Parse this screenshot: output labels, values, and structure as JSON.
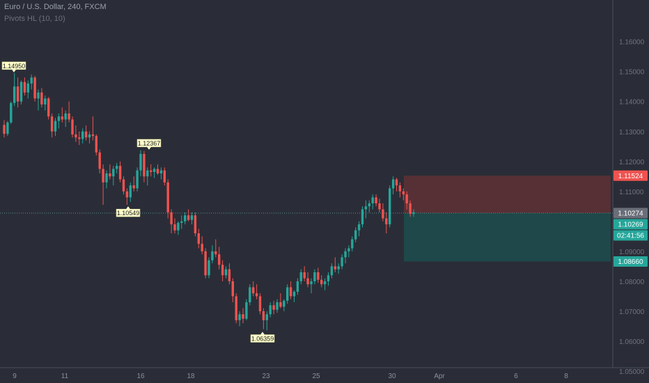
{
  "header": {
    "symbol_line": "Euro / U.S. Dollar, 240, FXCM",
    "indicator_line": "Pivots HL (10, 10)"
  },
  "colors": {
    "background": "#2a2d37",
    "up": "#26a69a",
    "down": "#ef5350",
    "axis_text": "#8a8f9b",
    "grid": "#353945"
  },
  "chart_data": {
    "type": "candlestick",
    "symbol": "Euro / U.S. Dollar",
    "interval": "240",
    "source": "FXCM",
    "ylim": [
      1.05,
      1.165
    ],
    "y_ticks": [
      "1.05000",
      "1.06000",
      "1.07000",
      "1.08000",
      "1.09000",
      "1.10000",
      "1.11000",
      "1.12000",
      "1.13000",
      "1.14000",
      "1.15000",
      "1.16000"
    ],
    "x_ticks": [
      "9",
      "11",
      "16",
      "18",
      "23",
      "25",
      "30",
      "Apr",
      "6",
      "8"
    ],
    "price_labels": [
      {
        "value": "1.11524",
        "kind": "stop"
      },
      {
        "value": "1.10274",
        "kind": "last"
      },
      {
        "value": "1.10269",
        "kind": "bid"
      },
      {
        "value": "02:41:56",
        "kind": "countdown"
      },
      {
        "value": "1.08660",
        "kind": "target"
      }
    ],
    "pivot_labels": [
      {
        "text": "1.14950",
        "type": "high",
        "value": 1.1495
      },
      {
        "text": "1.12367",
        "type": "high",
        "value": 1.12367
      },
      {
        "text": "1.10549",
        "type": "low",
        "value": 1.10549
      },
      {
        "text": "1.06359",
        "type": "low",
        "value": 1.06359
      }
    ],
    "position": {
      "entry": 1.10274,
      "stop": 1.11524,
      "target": 1.0866
    },
    "ohlc": [
      [
        1.1322,
        1.1338,
        1.128,
        1.1292
      ],
      [
        1.1292,
        1.1335,
        1.1285,
        1.133
      ],
      [
        1.133,
        1.14,
        1.1325,
        1.1395
      ],
      [
        1.1395,
        1.1495,
        1.1385,
        1.145
      ],
      [
        1.145,
        1.148,
        1.138,
        1.14
      ],
      [
        1.14,
        1.147,
        1.139,
        1.1465
      ],
      [
        1.1465,
        1.148,
        1.142,
        1.143
      ],
      [
        1.143,
        1.147,
        1.141,
        1.146
      ],
      [
        1.146,
        1.149,
        1.144,
        1.148
      ],
      [
        1.148,
        1.1485,
        1.14,
        1.141
      ],
      [
        1.141,
        1.144,
        1.137,
        1.143
      ],
      [
        1.143,
        1.1445,
        1.138,
        1.139
      ],
      [
        1.139,
        1.142,
        1.137,
        1.141
      ],
      [
        1.141,
        1.1415,
        1.134,
        1.135
      ],
      [
        1.135,
        1.136,
        1.128,
        1.13
      ],
      [
        1.13,
        1.1345,
        1.1285,
        1.1335
      ],
      [
        1.1335,
        1.136,
        1.131,
        1.135
      ],
      [
        1.135,
        1.138,
        1.133,
        1.134
      ],
      [
        1.134,
        1.137,
        1.1315,
        1.136
      ],
      [
        1.136,
        1.14,
        1.133,
        1.134
      ],
      [
        1.134,
        1.135,
        1.128,
        1.129
      ],
      [
        1.129,
        1.132,
        1.1265,
        1.128
      ],
      [
        1.128,
        1.13,
        1.1255,
        1.1275
      ],
      [
        1.1275,
        1.131,
        1.126,
        1.13
      ],
      [
        1.13,
        1.132,
        1.127,
        1.128
      ],
      [
        1.128,
        1.13,
        1.126,
        1.129
      ],
      [
        1.129,
        1.135,
        1.127,
        1.1285
      ],
      [
        1.1285,
        1.129,
        1.122,
        1.123
      ],
      [
        1.123,
        1.124,
        1.116,
        1.1175
      ],
      [
        1.1175,
        1.119,
        1.1055,
        1.113
      ],
      [
        1.113,
        1.117,
        1.111,
        1.116
      ],
      [
        1.116,
        1.119,
        1.114,
        1.115
      ],
      [
        1.115,
        1.1185,
        1.112,
        1.1175
      ],
      [
        1.1175,
        1.1195,
        1.116,
        1.1185
      ],
      [
        1.1185,
        1.12,
        1.113,
        1.114
      ],
      [
        1.114,
        1.115,
        1.109,
        1.11
      ],
      [
        1.11,
        1.111,
        1.1055,
        1.108
      ],
      [
        1.108,
        1.113,
        1.1065,
        1.112
      ],
      [
        1.112,
        1.115,
        1.11,
        1.111
      ],
      [
        1.111,
        1.118,
        1.11,
        1.117
      ],
      [
        1.117,
        1.1237,
        1.115,
        1.1225
      ],
      [
        1.1225,
        1.1235,
        1.113,
        1.115
      ],
      [
        1.115,
        1.118,
        1.112,
        1.117
      ],
      [
        1.117,
        1.119,
        1.115,
        1.1165
      ],
      [
        1.1165,
        1.118,
        1.1145,
        1.1175
      ],
      [
        1.1175,
        1.119,
        1.1155,
        1.116
      ],
      [
        1.116,
        1.118,
        1.114,
        1.117
      ],
      [
        1.117,
        1.118,
        1.112,
        1.113
      ],
      [
        1.113,
        1.114,
        1.101,
        1.103
      ],
      [
        1.103,
        1.104,
        1.096,
        1.099
      ],
      [
        1.099,
        1.101,
        1.096,
        1.097
      ],
      [
        1.097,
        1.1,
        1.0955,
        1.0995
      ],
      [
        1.0995,
        1.102,
        1.0975,
        1.1
      ],
      [
        1.1,
        1.103,
        1.099,
        1.102
      ],
      [
        1.102,
        1.104,
        1.1,
        1.1005
      ],
      [
        1.1005,
        1.103,
        1.099,
        1.102
      ],
      [
        1.102,
        1.103,
        1.095,
        1.096
      ],
      [
        1.096,
        1.0975,
        1.091,
        1.0925
      ],
      [
        1.0925,
        1.095,
        1.089,
        1.09
      ],
      [
        1.09,
        1.091,
        1.081,
        1.082
      ],
      [
        1.082,
        1.088,
        1.081,
        1.087
      ],
      [
        1.087,
        1.092,
        1.086,
        1.09
      ],
      [
        1.09,
        1.094,
        1.088,
        1.089
      ],
      [
        1.089,
        1.0915,
        1.084,
        1.0855
      ],
      [
        1.0855,
        1.087,
        1.08,
        1.082
      ],
      [
        1.082,
        1.085,
        1.081,
        1.084
      ],
      [
        1.084,
        1.086,
        1.079,
        1.08
      ],
      [
        1.08,
        1.081,
        1.073,
        1.075
      ],
      [
        1.075,
        1.076,
        1.066,
        1.067
      ],
      [
        1.067,
        1.07,
        1.065,
        1.069
      ],
      [
        1.069,
        1.071,
        1.066,
        1.0675
      ],
      [
        1.0675,
        1.074,
        1.067,
        1.073
      ],
      [
        1.073,
        1.079,
        1.072,
        1.078
      ],
      [
        1.078,
        1.08,
        1.075,
        1.076
      ],
      [
        1.076,
        1.079,
        1.074,
        1.075
      ],
      [
        1.075,
        1.076,
        1.069,
        1.07
      ],
      [
        1.07,
        1.071,
        1.064,
        1.067
      ],
      [
        1.067,
        1.07,
        1.0636,
        1.069
      ],
      [
        1.069,
        1.073,
        1.068,
        1.072
      ],
      [
        1.072,
        1.0735,
        1.069,
        1.0705
      ],
      [
        1.0705,
        1.074,
        1.0695,
        1.073
      ],
      [
        1.073,
        1.076,
        1.071,
        1.0715
      ],
      [
        1.0715,
        1.074,
        1.07,
        1.0735
      ],
      [
        1.0735,
        1.079,
        1.0725,
        1.078
      ],
      [
        1.078,
        1.08,
        1.074,
        1.075
      ],
      [
        1.075,
        1.077,
        1.073,
        1.0765
      ],
      [
        1.0765,
        1.081,
        1.0755,
        1.08
      ],
      [
        1.08,
        1.084,
        1.079,
        1.083
      ],
      [
        1.083,
        1.085,
        1.08,
        1.081
      ],
      [
        1.081,
        1.083,
        1.078,
        1.079
      ],
      [
        1.079,
        1.081,
        1.076,
        1.08
      ],
      [
        1.08,
        1.084,
        1.079,
        1.083
      ],
      [
        1.083,
        1.0845,
        1.0795,
        1.0805
      ],
      [
        1.0805,
        1.082,
        1.078,
        1.079
      ],
      [
        1.079,
        1.081,
        1.077,
        1.08
      ],
      [
        1.08,
        1.083,
        1.0785,
        1.082
      ],
      [
        1.082,
        1.086,
        1.081,
        1.085
      ],
      [
        1.085,
        1.088,
        1.083,
        1.084
      ],
      [
        1.084,
        1.086,
        1.0825,
        1.085
      ],
      [
        1.085,
        1.089,
        1.084,
        1.088
      ],
      [
        1.088,
        1.091,
        1.086,
        1.09
      ],
      [
        1.09,
        1.092,
        1.088,
        1.091
      ],
      [
        1.091,
        1.095,
        1.09,
        1.094
      ],
      [
        1.094,
        1.098,
        1.093,
        1.097
      ],
      [
        1.097,
        1.1,
        1.095,
        1.099
      ],
      [
        1.099,
        1.105,
        1.098,
        1.104
      ],
      [
        1.104,
        1.107,
        1.101,
        1.105
      ],
      [
        1.105,
        1.107,
        1.103,
        1.106
      ],
      [
        1.106,
        1.109,
        1.104,
        1.108
      ],
      [
        1.108,
        1.109,
        1.105,
        1.106
      ],
      [
        1.106,
        1.1075,
        1.103,
        1.104
      ],
      [
        1.104,
        1.106,
        1.1,
        1.101
      ],
      [
        1.101,
        1.103,
        1.096,
        1.099
      ],
      [
        1.099,
        1.112,
        1.098,
        1.111
      ],
      [
        1.111,
        1.115,
        1.109,
        1.114
      ],
      [
        1.114,
        1.1145,
        1.11,
        1.112
      ],
      [
        1.112,
        1.113,
        1.108,
        1.11
      ],
      [
        1.11,
        1.111,
        1.107,
        1.109
      ],
      [
        1.109,
        1.11,
        1.104,
        1.106
      ],
      [
        1.106,
        1.107,
        1.1015,
        1.1025
      ],
      [
        1.1025,
        1.104,
        1.1015,
        1.103
      ]
    ]
  }
}
